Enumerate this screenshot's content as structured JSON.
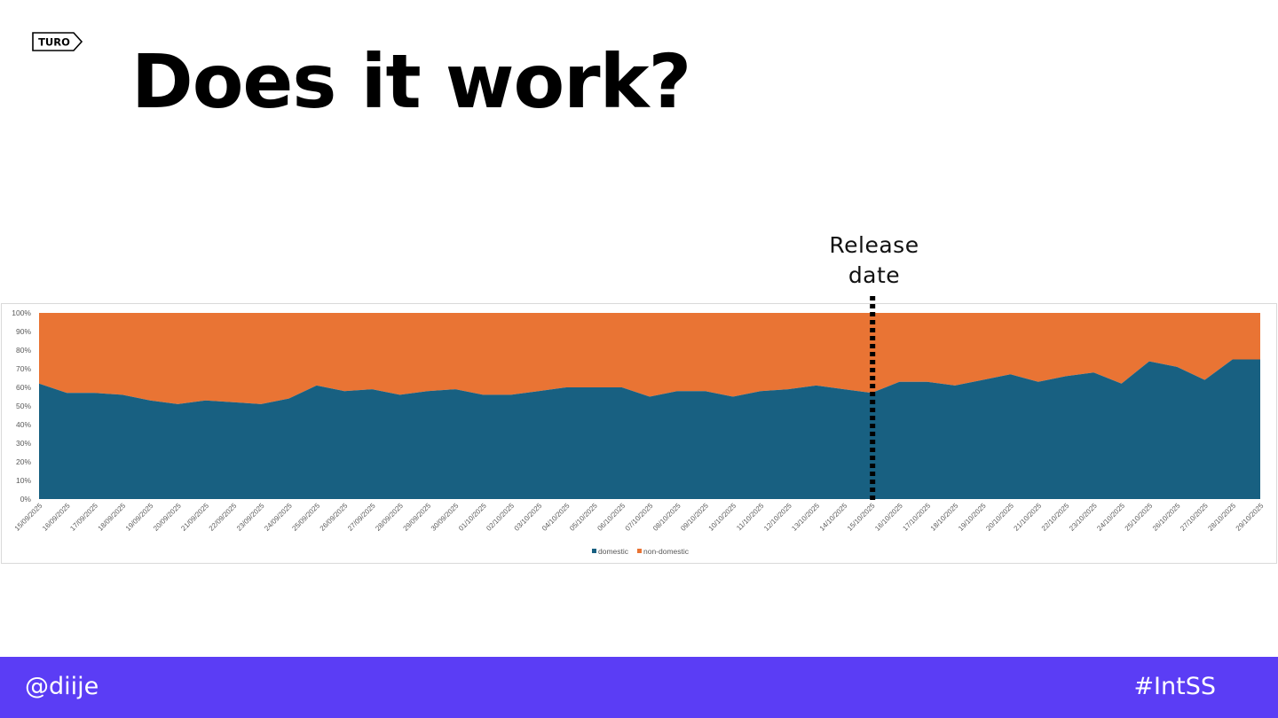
{
  "logo": {
    "text": "TURO"
  },
  "slide": {
    "title": "Does it work?"
  },
  "annotation": {
    "release_label_line1": "Release",
    "release_label_line2": "date",
    "release_date": "15/10/2025"
  },
  "footer": {
    "handle": "@diije",
    "hashtag": "#IntSS"
  },
  "colors": {
    "domestic": "#186081",
    "non_domestic": "#e97434",
    "footer_bg": "#5b3df5",
    "marker": "#000000"
  },
  "chart_data": {
    "type": "area",
    "stacked": "percent",
    "title": "",
    "xlabel": "",
    "ylabel": "",
    "ylim": [
      0,
      100
    ],
    "y_ticks": [
      "0%",
      "10%",
      "20%",
      "30%",
      "40%",
      "50%",
      "60%",
      "70%",
      "80%",
      "90%",
      "100%"
    ],
    "legend_position": "bottom",
    "grid": false,
    "x": [
      "15/09/2025",
      "16/09/2025",
      "17/09/2025",
      "18/09/2025",
      "19/09/2025",
      "20/09/2025",
      "21/09/2025",
      "22/09/2025",
      "23/09/2025",
      "24/09/2025",
      "25/09/2025",
      "26/09/2025",
      "27/09/2025",
      "28/09/2025",
      "29/09/2025",
      "30/09/2025",
      "01/10/2025",
      "02/10/2025",
      "03/10/2025",
      "04/10/2025",
      "05/10/2025",
      "06/10/2025",
      "07/10/2025",
      "08/10/2025",
      "09/10/2025",
      "10/10/2025",
      "11/10/2025",
      "12/10/2025",
      "13/10/2025",
      "14/10/2025",
      "15/10/2025",
      "16/10/2025",
      "17/10/2025",
      "18/10/2025",
      "19/10/2025",
      "20/10/2025",
      "21/10/2025",
      "22/10/2025",
      "23/10/2025",
      "24/10/2025",
      "25/10/2025",
      "26/10/2025",
      "27/10/2025",
      "28/10/2025",
      "29/10/2025"
    ],
    "series": [
      {
        "name": "domestic",
        "values": [
          62,
          57,
          57,
          56,
          53,
          51,
          53,
          52,
          51,
          54,
          61,
          58,
          59,
          56,
          58,
          59,
          56,
          56,
          58,
          60,
          60,
          60,
          55,
          58,
          58,
          55,
          58,
          59,
          61,
          59,
          57,
          63,
          63,
          61,
          64,
          67,
          63,
          66,
          68,
          62,
          74,
          71,
          64,
          75,
          75
        ]
      },
      {
        "name": "non-domestic",
        "values": [
          38,
          43,
          43,
          44,
          47,
          49,
          47,
          48,
          49,
          46,
          39,
          42,
          41,
          44,
          42,
          41,
          44,
          44,
          42,
          40,
          40,
          40,
          45,
          42,
          42,
          45,
          42,
          41,
          39,
          41,
          43,
          37,
          37,
          39,
          36,
          33,
          37,
          34,
          32,
          38,
          26,
          29,
          36,
          25,
          25
        ]
      }
    ]
  }
}
